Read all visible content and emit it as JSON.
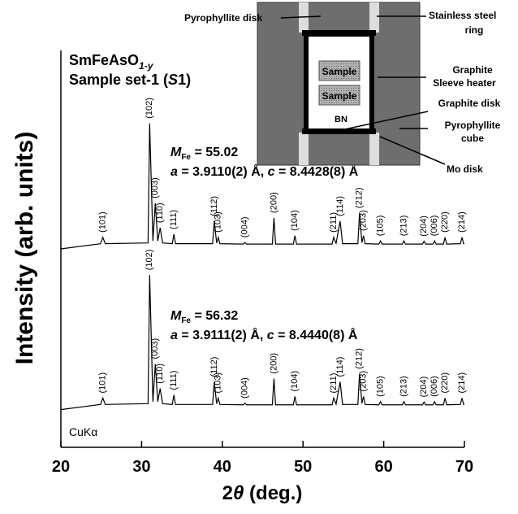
{
  "chart_data": {
    "type": "line",
    "title_lines": [
      [
        "SmFeAsO",
        "1-y"
      ],
      [
        "Sample set-1 (",
        "S",
        "1)"
      ]
    ],
    "x_label": [
      "2",
      "θ",
      " (deg.)"
    ],
    "y_label": "Intensity (arb. units)",
    "radiation_label": "CuKα",
    "xlim": [
      20,
      70
    ],
    "xticks": [
      20,
      30,
      40,
      50,
      60,
      70
    ],
    "ylim": [
      0,
      100
    ],
    "x": [
      20,
      24.9,
      25.2,
      25.5,
      30.8,
      31.0,
      31.4,
      31.7,
      32.0,
      32.3,
      32.6,
      33.8,
      34.0,
      34.2,
      38.8,
      39.0,
      39.3,
      39.5,
      39.7,
      42.6,
      42.8,
      43.0,
      46.2,
      46.4,
      46.6,
      48.8,
      49.0,
      49.2,
      53.6,
      53.8,
      54.1,
      54.6,
      54.9,
      56.8,
      57.0,
      57.3,
      57.5,
      57.7,
      59.4,
      59.6,
      59.8,
      62.3,
      62.5,
      62.7,
      64.8,
      65.0,
      65.2,
      66.1,
      66.3,
      66.5,
      67.4,
      67.6,
      67.8,
      69.5,
      69.7,
      69.9,
      70
    ],
    "series": [
      {
        "color": "#000000",
        "values": [
          50.0,
          51.3,
          52.9,
          51.3,
          51.5,
          81.6,
          52,
          61.5,
          52,
          55.3,
          51.5,
          51.3,
          53.7,
          51.3,
          51.3,
          57.0,
          51.5,
          52.9,
          51.3,
          51.2,
          51.6,
          51.2,
          51.2,
          57.8,
          51.2,
          51.2,
          53.3,
          51.2,
          51.2,
          52.9,
          51.4,
          57.0,
          51.3,
          51.3,
          59.0,
          51.6,
          53.3,
          51.3,
          51.2,
          52.0,
          51.2,
          51.2,
          52.0,
          51.2,
          51.2,
          51.9,
          51.2,
          51.2,
          52.0,
          51.2,
          51.2,
          52.9,
          51.2,
          51.3,
          52.9,
          51.3,
          51.3
        ],
        "annotation": [
          [
            "M",
            "Fe",
            " = 55.02"
          ],
          [
            "a",
            " = 3.9110(2) Å, ",
            "c",
            " = 8.4428(8) Å"
          ]
        ]
      },
      {
        "color": "#000000",
        "values": [
          9.5,
          10.8,
          12.4,
          10.8,
          11.0,
          43.4,
          11.5,
          21.0,
          11.5,
          14.8,
          11.0,
          10.8,
          13.2,
          10.8,
          10.8,
          16.5,
          11.0,
          12.4,
          10.8,
          10.7,
          11.1,
          10.7,
          10.7,
          17.3,
          10.7,
          10.7,
          12.8,
          10.7,
          10.7,
          12.4,
          10.9,
          16.5,
          10.8,
          10.8,
          18.5,
          11.1,
          12.8,
          10.8,
          10.7,
          11.5,
          10.7,
          10.7,
          11.5,
          10.7,
          10.7,
          11.4,
          10.7,
          10.7,
          11.5,
          10.7,
          10.7,
          12.4,
          10.7,
          10.8,
          12.4,
          10.8,
          10.8
        ],
        "annotation": [
          [
            "M",
            "Fe",
            " = 56.32"
          ],
          [
            "a",
            " = 3.9111(2) Å, ",
            "c",
            " = 8.4440(8) Å"
          ]
        ]
      }
    ],
    "peaks": [
      {
        "label": "(101)",
        "x": 25.2
      },
      {
        "label": "(102)",
        "x": 31.0
      },
      {
        "label": "(003)",
        "x": 31.7
      },
      {
        "label": "(110)",
        "x": 32.3
      },
      {
        "label": "(111)",
        "x": 34.0
      },
      {
        "label": "(112)",
        "x": 39.0
      },
      {
        "label": "(103)",
        "x": 39.5
      },
      {
        "label": "(004)",
        "x": 42.8
      },
      {
        "label": "(200)",
        "x": 46.4
      },
      {
        "label": "(104)",
        "x": 49.0
      },
      {
        "label": "(211)",
        "x": 53.8
      },
      {
        "label": "(114)",
        "x": 54.6
      },
      {
        "label": "(212)",
        "x": 57.0
      },
      {
        "label": "(203)",
        "x": 57.5
      },
      {
        "label": "(105)",
        "x": 59.6
      },
      {
        "label": "(213)",
        "x": 62.5
      },
      {
        "label": "(204)",
        "x": 65.0
      },
      {
        "label": "(006)",
        "x": 66.3
      },
      {
        "label": "(220)",
        "x": 67.6
      },
      {
        "label": "(214)",
        "x": 69.7
      }
    ],
    "inset": {
      "pyrophyllite_disk": "Pyrophyllite disk",
      "ring": [
        "Stainless steel",
        "ring"
      ],
      "heater": [
        "Graphite",
        "Sleeve heater"
      ],
      "sample": "Sample",
      "bn": "BN",
      "graphite_disk": "Graphite disk",
      "cube": [
        "Pyrophyllite",
        "cube"
      ],
      "mo_disk": "Mo disk"
    }
  }
}
